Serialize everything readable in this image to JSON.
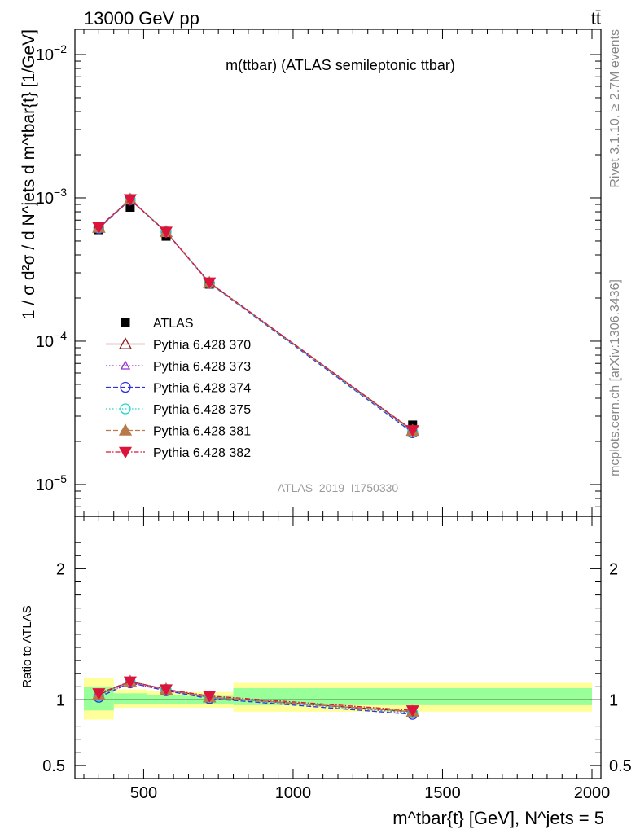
{
  "header": {
    "left": "13000 GeV pp",
    "right": "tt̄"
  },
  "side_text": {
    "rivet": "Rivet 3.1.10, ≥ 2.7M events",
    "mcplots": "mcplots.cern.ch [arXiv:1306.3436]"
  },
  "watermark": "ATLAS_2019_I1750330",
  "chart_data": [
    {
      "type": "line",
      "title": "m(ttbar) (ATLAS semileptonic ttbar)",
      "ylabel": "1 / σ d²σ / d N^jets d m^tbar{t} [1/GeV]",
      "yscale": "log",
      "ylim": [
        6e-06,
        0.015
      ],
      "xlim": [
        270,
        2030
      ],
      "y_ticks": [
        {
          "v": 1e-05,
          "base": "10",
          "exp": "−5"
        },
        {
          "v": 0.0001,
          "base": "10",
          "exp": "−4"
        },
        {
          "v": 0.001,
          "base": "10",
          "exp": "−3"
        },
        {
          "v": 0.01,
          "base": "10",
          "exp": "−2"
        }
      ],
      "legend_position": "mid-left",
      "data": {
        "name": "ATLAS",
        "x": [
          350,
          455,
          575,
          720,
          1400
        ],
        "y": [
          0.0006,
          0.00086,
          0.00054,
          0.00025,
          2.6e-05
        ]
      },
      "series": [
        {
          "name": "Pythia 6.428 370",
          "color": "#8b1a1a",
          "marker": "triangle-open",
          "dash": "",
          "y": [
            0.00062,
            0.000975,
            0.000578,
            0.000256,
            2.38e-05
          ]
        },
        {
          "name": "Pythia 6.428 373",
          "color": "#9932cc",
          "marker": "triangle-open-small",
          "dash": "1.5,2.5",
          "y": [
            0.000618,
            0.000972,
            0.000576,
            0.000255,
            2.34e-05
          ]
        },
        {
          "name": "Pythia 6.428 374",
          "color": "#3030e0",
          "marker": "circle-open",
          "dash": "6,3",
          "y": [
            0.000612,
            0.00097,
            0.00058,
            0.000254,
            2.3e-05
          ]
        },
        {
          "name": "Pythia 6.428 375",
          "color": "#20d8c0",
          "marker": "circle-open",
          "dash": "1.5,2.5",
          "y": [
            0.00062,
            0.000978,
            0.000582,
            0.000255,
            2.33e-05
          ]
        },
        {
          "name": "Pythia 6.428 381",
          "color": "#b87a4b",
          "marker": "triangle-filled",
          "dash": "6,3",
          "y": [
            0.000622,
            0.000975,
            0.000579,
            0.000256,
            2.37e-05
          ]
        },
        {
          "name": "Pythia 6.428 382",
          "color": "#dc143c",
          "marker": "triangle-down-filled",
          "dash": "6,2,1.5,2",
          "y": [
            0.000624,
            0.000977,
            0.00058,
            0.000257,
            2.39e-05
          ]
        }
      ]
    },
    {
      "type": "line",
      "ylabel": "Ratio to ATLAS",
      "xlabel": "m^tbar{t} [GeV], N^jets = 5",
      "xlim": [
        270,
        2030
      ],
      "ylim": [
        0.4,
        2.4
      ],
      "y_ticks": [
        0.5,
        1,
        2
      ],
      "x_ticks": [
        500,
        1000,
        1500,
        2000
      ],
      "reference_line": 1,
      "bins": [
        {
          "x0": 300,
          "x1": 400,
          "stat_lo": 0.92,
          "stat_hi": 1.1,
          "tot_lo": 0.85,
          "tot_hi": 1.17
        },
        {
          "x0": 400,
          "x1": 510,
          "stat_lo": 0.97,
          "stat_hi": 1.05,
          "tot_lo": 0.94,
          "tot_hi": 1.08
        },
        {
          "x0": 510,
          "x1": 640,
          "stat_lo": 0.97,
          "stat_hi": 1.04,
          "tot_lo": 0.94,
          "tot_hi": 1.07
        },
        {
          "x0": 640,
          "x1": 800,
          "stat_lo": 0.97,
          "stat_hi": 1.03,
          "tot_lo": 0.94,
          "tot_hi": 1.06
        },
        {
          "x0": 800,
          "x1": 2000,
          "stat_lo": 0.96,
          "stat_hi": 1.09,
          "tot_lo": 0.91,
          "tot_hi": 1.13
        }
      ],
      "x": [
        350,
        455,
        575,
        720,
        1400
      ],
      "series": [
        {
          "name": "Pythia 6.428 370",
          "y": [
            1.04,
            1.14,
            1.08,
            1.02,
            0.91
          ]
        },
        {
          "name": "Pythia 6.428 373",
          "y": [
            1.03,
            1.13,
            1.07,
            1.02,
            0.9
          ]
        },
        {
          "name": "Pythia 6.428 374",
          "y": [
            1.02,
            1.13,
            1.07,
            1.01,
            0.89
          ]
        },
        {
          "name": "Pythia 6.428 375",
          "y": [
            1.03,
            1.14,
            1.08,
            1.02,
            0.9
          ]
        },
        {
          "name": "Pythia 6.428 381",
          "y": [
            1.04,
            1.14,
            1.08,
            1.02,
            0.91
          ]
        },
        {
          "name": "Pythia 6.428 382",
          "y": [
            1.05,
            1.14,
            1.08,
            1.03,
            0.92
          ]
        }
      ]
    }
  ]
}
